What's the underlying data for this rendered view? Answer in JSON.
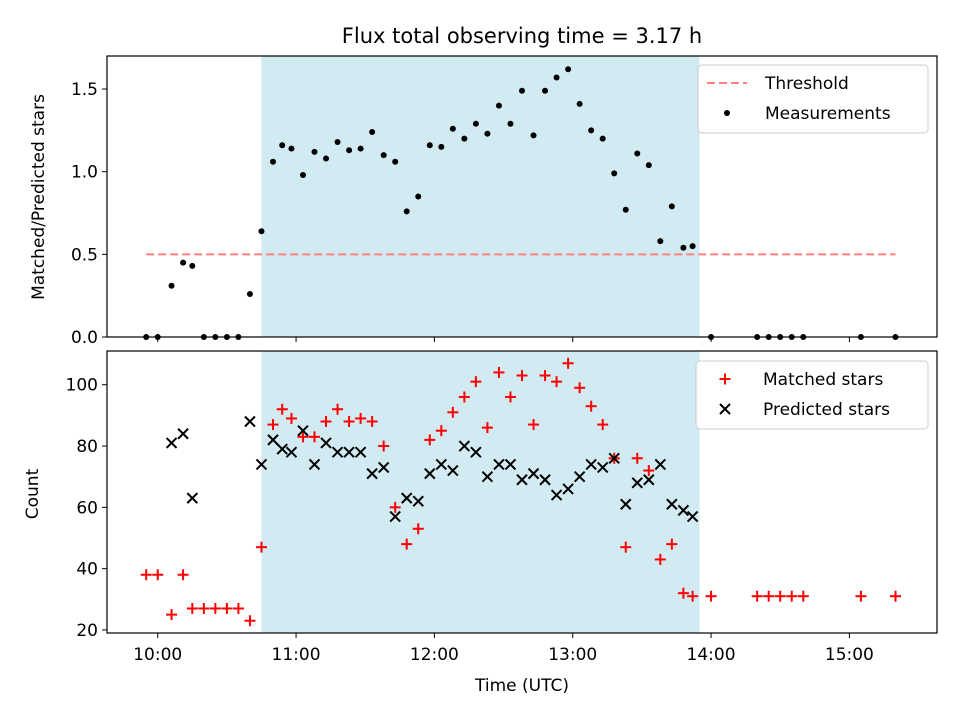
{
  "colors": {
    "shade": "#add8e6",
    "threshold": "#ff7f7f",
    "measurement": "#000000",
    "matched": "#ff0000",
    "predicted": "#000000"
  },
  "chart_data": [
    {
      "type": "scatter",
      "title": "Flux total observing time = 3.17 h",
      "xlabel": "",
      "ylabel": "Matched/Predicted stars",
      "x_unit": "time (UTC)",
      "xlim": [
        "09:38",
        "15:38"
      ],
      "ylim": [
        0,
        1.7
      ],
      "yticks": [
        0.0,
        0.5,
        1.0,
        1.5
      ],
      "ytick_labels": [
        "0.0",
        "0.5",
        "1.0",
        "1.5"
      ],
      "xtick_labels_shown": false,
      "shaded_interval": [
        "10:45",
        "13:55"
      ],
      "grid": false,
      "legend": {
        "placement": "top-right",
        "entries": [
          "Threshold",
          "Measurements"
        ]
      },
      "series": [
        {
          "name": "Threshold",
          "style": "dashed-line",
          "x": [
            "09:55",
            "15:20"
          ],
          "y": [
            0.5,
            0.5
          ]
        },
        {
          "name": "Measurements",
          "style": "dots",
          "x": [
            "09:55",
            "10:00",
            "10:06",
            "10:11",
            "10:15",
            "10:20",
            "10:25",
            "10:30",
            "10:35",
            "10:40",
            "10:45",
            "10:50",
            "10:54",
            "10:58",
            "11:03",
            "11:08",
            "11:13",
            "11:18",
            "11:23",
            "11:28",
            "11:33",
            "11:38",
            "11:43",
            "11:48",
            "11:53",
            "11:58",
            "12:03",
            "12:08",
            "12:13",
            "12:18",
            "12:23",
            "12:28",
            "12:33",
            "12:38",
            "12:43",
            "12:48",
            "12:53",
            "12:58",
            "13:03",
            "13:08",
            "13:13",
            "13:18",
            "13:23",
            "13:28",
            "13:33",
            "13:38",
            "13:43",
            "13:48",
            "13:52",
            "14:00",
            "14:20",
            "14:25",
            "14:30",
            "14:35",
            "14:40",
            "15:05",
            "15:20"
          ],
          "y": [
            0,
            0,
            0.31,
            0.45,
            0.43,
            0,
            0,
            0,
            0,
            0.26,
            0.64,
            1.06,
            1.16,
            1.14,
            0.98,
            1.12,
            1.08,
            1.18,
            1.13,
            1.14,
            1.24,
            1.1,
            1.06,
            0.76,
            0.85,
            1.16,
            1.15,
            1.26,
            1.2,
            1.29,
            1.23,
            1.4,
            1.29,
            1.49,
            1.22,
            1.49,
            1.57,
            1.62,
            1.41,
            1.25,
            1.2,
            0.99,
            0.77,
            1.11,
            1.04,
            0.58,
            0.79,
            0.54,
            0.55,
            0,
            0,
            0,
            0,
            0,
            0,
            0,
            0
          ]
        }
      ]
    },
    {
      "type": "scatter",
      "title": "",
      "xlabel": "Time (UTC)",
      "ylabel": "Count",
      "x_unit": "time (UTC)",
      "xlim": [
        "09:38",
        "15:38"
      ],
      "ylim": [
        19,
        111
      ],
      "xticks": [
        "10:00",
        "11:00",
        "12:00",
        "13:00",
        "14:00",
        "15:00"
      ],
      "xtick_labels": [
        "10:00",
        "11:00",
        "12:00",
        "13:00",
        "14:00",
        "15:00"
      ],
      "yticks": [
        20,
        40,
        60,
        80,
        100
      ],
      "ytick_labels": [
        "20",
        "40",
        "60",
        "80",
        "100"
      ],
      "shaded_interval": [
        "10:45",
        "13:55"
      ],
      "grid": false,
      "legend": {
        "placement": "top-right",
        "entries": [
          "Matched stars",
          "Predicted stars"
        ]
      },
      "series": [
        {
          "name": "Matched stars",
          "marker": "plus",
          "x": [
            "09:55",
            "10:00",
            "10:06",
            "10:11",
            "10:15",
            "10:20",
            "10:25",
            "10:30",
            "10:35",
            "10:40",
            "10:45",
            "10:50",
            "10:54",
            "10:58",
            "11:03",
            "11:08",
            "11:13",
            "11:18",
            "11:23",
            "11:28",
            "11:33",
            "11:38",
            "11:43",
            "11:48",
            "11:53",
            "11:58",
            "12:03",
            "12:08",
            "12:13",
            "12:18",
            "12:23",
            "12:28",
            "12:33",
            "12:38",
            "12:43",
            "12:48",
            "12:53",
            "12:58",
            "13:03",
            "13:08",
            "13:13",
            "13:18",
            "13:23",
            "13:28",
            "13:33",
            "13:38",
            "13:43",
            "13:48",
            "13:52",
            "14:00",
            "14:20",
            "14:25",
            "14:30",
            "14:35",
            "14:40",
            "15:05",
            "15:20"
          ],
          "y": [
            38,
            38,
            25,
            38,
            27,
            27,
            27,
            27,
            27,
            23,
            47,
            87,
            92,
            89,
            83,
            83,
            88,
            92,
            88,
            89,
            88,
            80,
            60,
            48,
            53,
            82,
            85,
            91,
            96,
            101,
            86,
            104,
            96,
            103,
            87,
            103,
            101,
            107,
            99,
            93,
            87,
            76,
            47,
            76,
            72,
            43,
            48,
            32,
            31,
            31,
            31,
            31,
            31,
            31,
            31,
            31,
            31
          ]
        },
        {
          "name": "Predicted stars",
          "marker": "x",
          "x": [
            "10:06",
            "10:11",
            "10:15",
            "10:40",
            "10:45",
            "10:50",
            "10:54",
            "10:58",
            "11:03",
            "11:08",
            "11:13",
            "11:18",
            "11:23",
            "11:28",
            "11:33",
            "11:38",
            "11:43",
            "11:48",
            "11:53",
            "11:58",
            "12:03",
            "12:08",
            "12:13",
            "12:18",
            "12:23",
            "12:28",
            "12:33",
            "12:38",
            "12:43",
            "12:48",
            "12:53",
            "12:58",
            "13:03",
            "13:08",
            "13:13",
            "13:18",
            "13:23",
            "13:28",
            "13:33",
            "13:38",
            "13:43",
            "13:48",
            "13:52"
          ],
          "y": [
            81,
            84,
            63,
            88,
            74,
            82,
            79,
            78,
            85,
            74,
            81,
            78,
            78,
            78,
            71,
            73,
            57,
            63,
            62,
            71,
            74,
            72,
            80,
            78,
            70,
            74,
            74,
            69,
            71,
            69,
            64,
            66,
            70,
            74,
            73,
            76,
            61,
            68,
            69,
            74,
            61,
            59,
            57
          ]
        }
      ]
    }
  ]
}
